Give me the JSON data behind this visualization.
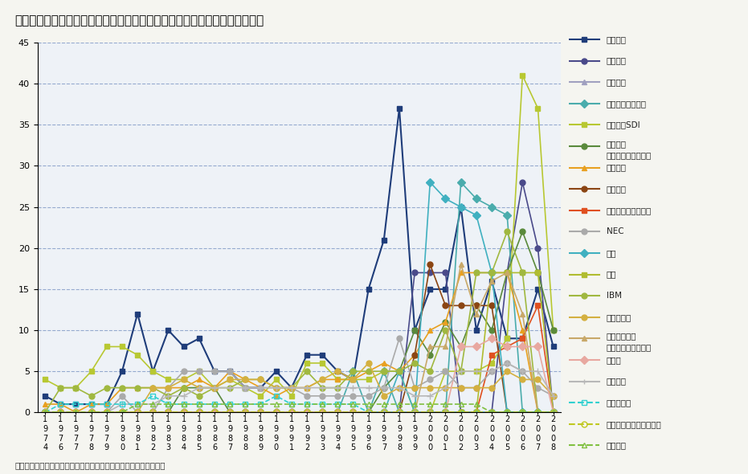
{
  "title": "太陽光発電技術における国際特許出願トップ２０の企業・機関の時系列変遷",
  "footnote": "資料：政策研究大学院大学　角南篤准教授ほか論文より環境省作成",
  "years": [
    "1\n9\n7\n4",
    "1\n9\n7\n6",
    "1\n9\n7\n7",
    "1\n9\n7\n8",
    "1\n9\n7\n9",
    "1\n9\n8\n0",
    "1\n9\n8\n1",
    "1\n9\n8\n2",
    "1\n9\n8\n3",
    "1\n9\n8\n4",
    "1\n9\n8\n5",
    "1\n9\n8\n6",
    "1\n9\n8\n7",
    "1\n9\n8\n8",
    "1\n9\n8\n9",
    "1\n9\n9\n0",
    "1\n9\n9\n1",
    "1\n9\n9\n2",
    "1\n9\n9\n3",
    "1\n9\n9\n4",
    "1\n9\n9\n5",
    "1\n9\n9\n6",
    "1\n9\n9\n7",
    "1\n9\n9\n8",
    "1\n9\n9\n9",
    "2\n0\n0\n0",
    "2\n0\n0\n1",
    "2\n0\n0\n2",
    "2\n0\n0\n3",
    "2\n0\n0\n4",
    "2\n0\n0\n5",
    "2\n0\n0\n6",
    "2\n0\n0\n7",
    "2\n0\n0\n8"
  ],
  "year_labels": [
    "1974",
    "1976",
    "1977",
    "1978",
    "1979",
    "1980",
    "1981",
    "1982",
    "1983",
    "1984",
    "1985",
    "1986",
    "1987",
    "1988",
    "1989",
    "1990",
    "1991",
    "1992",
    "1993",
    "1994",
    "1995",
    "1996",
    "1997",
    "1998",
    "1999",
    "2000",
    "2001",
    "2002",
    "2003",
    "2004",
    "2005",
    "2006",
    "2007",
    "2008"
  ],
  "series": [
    {
      "name": "キャノン",
      "color": "#1f3d7a",
      "marker": "s",
      "linestyle": "-",
      "linewidth": 1.5,
      "markersize": 5,
      "data": [
        2,
        1,
        1,
        1,
        1,
        5,
        12,
        5,
        10,
        8,
        9,
        5,
        5,
        3,
        3,
        5,
        3,
        7,
        7,
        5,
        4,
        15,
        21,
        37,
        10,
        15,
        15,
        25,
        10,
        16,
        9,
        9,
        15,
        8
      ]
    },
    {
      "name": "シャープ",
      "color": "#4a4a8a",
      "marker": "o",
      "linestyle": "-",
      "linewidth": 1.2,
      "markersize": 5,
      "data": [
        0,
        0,
        0,
        0,
        0,
        0,
        0,
        0,
        0,
        0,
        0,
        0,
        0,
        0,
        0,
        0,
        0,
        0,
        0,
        0,
        0,
        0,
        0,
        0,
        17,
        17,
        17,
        0,
        0,
        0,
        17,
        28,
        20,
        0
      ]
    },
    {
      "name": "サムソン",
      "color": "#a0a0c0",
      "marker": "^",
      "linestyle": "-",
      "linewidth": 1.2,
      "markersize": 5,
      "data": [
        0,
        0,
        0,
        0,
        0,
        0,
        0,
        0,
        0,
        0,
        0,
        0,
        0,
        0,
        0,
        0,
        0,
        0,
        0,
        0,
        0,
        0,
        0,
        0,
        0,
        0,
        0,
        0,
        0,
        0,
        0,
        0,
        0,
        0
      ]
    },
    {
      "name": "セイコーエプソン",
      "color": "#4aacac",
      "marker": "D",
      "linestyle": "-",
      "linewidth": 1.2,
      "markersize": 5,
      "data": [
        0,
        0,
        0,
        0,
        0,
        0,
        0,
        0,
        0,
        0,
        0,
        0,
        0,
        0,
        0,
        0,
        0,
        0,
        0,
        0,
        5,
        0,
        5,
        0,
        0,
        0,
        0,
        28,
        26,
        25,
        24,
        0,
        0,
        0
      ]
    },
    {
      "name": "サムソンSDI",
      "color": "#b8c832",
      "marker": "s",
      "linestyle": "-",
      "linewidth": 1.2,
      "markersize": 5,
      "data": [
        4,
        3,
        3,
        5,
        8,
        8,
        7,
        5,
        4,
        4,
        5,
        3,
        4,
        3,
        2,
        4,
        2,
        6,
        6,
        4,
        4,
        4,
        5,
        5,
        0,
        0,
        5,
        5,
        5,
        6,
        9,
        41,
        37,
        10
      ]
    },
    {
      "name": "三洋電機\n（現パナソニック）",
      "color": "#5a8a3c",
      "marker": "o",
      "linestyle": "-",
      "linewidth": 1.2,
      "markersize": 5,
      "data": [
        0,
        0,
        0,
        0,
        0,
        0,
        0,
        0,
        0,
        3,
        3,
        3,
        0,
        0,
        0,
        0,
        0,
        0,
        0,
        0,
        0,
        0,
        3,
        5,
        10,
        7,
        11,
        8,
        13,
        10,
        17,
        22,
        17,
        10
      ]
    },
    {
      "name": "三菱電機",
      "color": "#e8a020",
      "marker": "^",
      "linestyle": "-",
      "linewidth": 1.2,
      "markersize": 5,
      "data": [
        1,
        1,
        0,
        1,
        1,
        3,
        3,
        3,
        3,
        3,
        4,
        3,
        5,
        4,
        3,
        2,
        3,
        3,
        4,
        4,
        4,
        5,
        6,
        5,
        7,
        10,
        11,
        17,
        17,
        17,
        17,
        10,
        0,
        0
      ]
    },
    {
      "name": "コダック",
      "color": "#8b4513",
      "marker": "o",
      "linestyle": "-",
      "linewidth": 1.2,
      "markersize": 5,
      "data": [
        0,
        0,
        0,
        0,
        0,
        0,
        0,
        0,
        0,
        0,
        0,
        0,
        0,
        0,
        0,
        0,
        0,
        0,
        0,
        0,
        0,
        0,
        0,
        0,
        7,
        18,
        13,
        13,
        13,
        13,
        0,
        0,
        0,
        0
      ]
    },
    {
      "name": "フラウンホーファー",
      "color": "#e05020",
      "marker": "s",
      "linestyle": "-",
      "linewidth": 1.2,
      "markersize": 5,
      "data": [
        0,
        0,
        0,
        0,
        0,
        0,
        0,
        0,
        0,
        0,
        0,
        0,
        0,
        0,
        0,
        0,
        0,
        0,
        0,
        0,
        0,
        0,
        0,
        0,
        0,
        0,
        0,
        0,
        0,
        7,
        8,
        9,
        13,
        0
      ]
    },
    {
      "name": "NEC",
      "color": "#aaaaaa",
      "marker": "o",
      "linestyle": "-",
      "linewidth": 1.2,
      "markersize": 5,
      "data": [
        0,
        0,
        0,
        0,
        0,
        2,
        0,
        0,
        3,
        5,
        5,
        5,
        5,
        3,
        3,
        3,
        3,
        2,
        2,
        2,
        2,
        2,
        3,
        9,
        3,
        4,
        5,
        3,
        3,
        5,
        6,
        5,
        3,
        2
      ]
    },
    {
      "name": "東芝",
      "color": "#40b0c0",
      "marker": "D",
      "linestyle": "-",
      "linewidth": 1.2,
      "markersize": 5,
      "data": [
        0,
        0,
        0,
        0,
        0,
        0,
        0,
        0,
        0,
        0,
        0,
        0,
        0,
        0,
        0,
        0,
        0,
        0,
        0,
        0,
        0,
        0,
        0,
        5,
        0,
        28,
        26,
        25,
        24,
        17,
        0,
        0,
        0,
        0
      ]
    },
    {
      "name": "日立",
      "color": "#b0bc30",
      "marker": "s",
      "linestyle": "-",
      "linewidth": 1.2,
      "markersize": 5,
      "data": [
        0,
        0,
        0,
        0,
        0,
        0,
        0,
        0,
        0,
        0,
        0,
        0,
        0,
        0,
        0,
        0,
        0,
        0,
        0,
        0,
        0,
        0,
        0,
        0,
        0,
        0,
        0,
        0,
        0,
        17,
        17,
        17,
        17,
        0
      ]
    },
    {
      "name": "IBM",
      "color": "#a0b840",
      "marker": "o",
      "linestyle": "-",
      "linewidth": 1.2,
      "markersize": 5,
      "data": [
        0,
        3,
        3,
        2,
        3,
        3,
        3,
        3,
        2,
        3,
        2,
        3,
        3,
        4,
        4,
        3,
        3,
        5,
        3,
        3,
        5,
        5,
        5,
        5,
        6,
        5,
        10,
        5,
        17,
        17,
        22,
        17,
        0,
        0
      ]
    },
    {
      "name": "シーメンス",
      "color": "#d4b040",
      "marker": "o",
      "linestyle": "-",
      "linewidth": 1.2,
      "markersize": 5,
      "data": [
        0,
        0,
        0,
        0,
        0,
        0,
        0,
        3,
        3,
        4,
        3,
        3,
        4,
        4,
        4,
        3,
        3,
        3,
        4,
        5,
        4,
        6,
        2,
        3,
        3,
        3,
        3,
        3,
        3,
        3,
        5,
        4,
        4,
        2
      ]
    },
    {
      "name": "松下電器産業\n（現パナソニック）",
      "color": "#c8a868",
      "marker": "^",
      "linestyle": "-",
      "linewidth": 1.2,
      "markersize": 5,
      "data": [
        0,
        0,
        0,
        0,
        0,
        0,
        0,
        0,
        0,
        0,
        0,
        0,
        0,
        0,
        0,
        0,
        0,
        0,
        0,
        0,
        0,
        0,
        0,
        0,
        0,
        8,
        8,
        18,
        12,
        16,
        17,
        12,
        0,
        0
      ]
    },
    {
      "name": "富士通",
      "color": "#e8a8a0",
      "marker": "D",
      "linestyle": "-",
      "linewidth": 1.2,
      "markersize": 5,
      "data": [
        0,
        0,
        0,
        0,
        0,
        0,
        0,
        0,
        0,
        0,
        0,
        0,
        0,
        0,
        0,
        0,
        0,
        0,
        0,
        0,
        0,
        0,
        0,
        0,
        0,
        0,
        0,
        8,
        8,
        9,
        8,
        8,
        8,
        0
      ]
    },
    {
      "name": "富士電機",
      "color": "#b8b8b8",
      "marker": "+",
      "linestyle": "-",
      "linewidth": 1.2,
      "markersize": 6,
      "data": [
        0,
        0,
        0,
        0,
        0,
        1,
        1,
        1,
        2,
        2,
        3,
        3,
        3,
        3,
        3,
        3,
        3,
        3,
        3,
        3,
        3,
        3,
        3,
        3,
        2,
        2,
        3,
        5,
        5,
        5,
        6,
        5,
        5,
        2
      ]
    },
    {
      "name": "工業技術院",
      "color": "#30d0d0",
      "marker": "s",
      "linestyle": "--",
      "linewidth": 1.2,
      "markersize": 5,
      "fillstyle": "none",
      "data": [
        0,
        1,
        1,
        1,
        1,
        1,
        1,
        2,
        1,
        1,
        1,
        1,
        1,
        1,
        1,
        2,
        1,
        1,
        1,
        1,
        1,
        0,
        0,
        0,
        0,
        0,
        0,
        0,
        0,
        0,
        0,
        0,
        0,
        0
      ]
    },
    {
      "name": "半導体エネルギー研究所",
      "color": "#c0c820",
      "marker": "o",
      "linestyle": "--",
      "linewidth": 1.2,
      "markersize": 5,
      "fillstyle": "none",
      "data": [
        0,
        0,
        0,
        0,
        0,
        0,
        0,
        0,
        0,
        0,
        0,
        0,
        0,
        0,
        0,
        0,
        0,
        0,
        0,
        0,
        0,
        0,
        0,
        0,
        0,
        0,
        0,
        0,
        0,
        0,
        0,
        0,
        0,
        0
      ]
    },
    {
      "name": "松下電工",
      "color": "#80c040",
      "marker": "^",
      "linestyle": "--",
      "linewidth": 1.2,
      "markersize": 5,
      "fillstyle": "none",
      "data": [
        0,
        0,
        0,
        0,
        0,
        0,
        1,
        1,
        1,
        1,
        1,
        1,
        1,
        1,
        1,
        1,
        1,
        1,
        1,
        1,
        1,
        1,
        1,
        1,
        1,
        1,
        1,
        1,
        1,
        0,
        0,
        0,
        0,
        0
      ]
    }
  ],
  "ylim": [
    0,
    45
  ],
  "yticks": [
    0,
    5,
    10,
    15,
    20,
    25,
    30,
    35,
    40,
    45
  ],
  "background_color": "#eef2f7",
  "plot_area_color": "#eef2f7",
  "grid_color": "#5a7ab5",
  "grid_linestyle": "--",
  "grid_alpha": 0.6
}
